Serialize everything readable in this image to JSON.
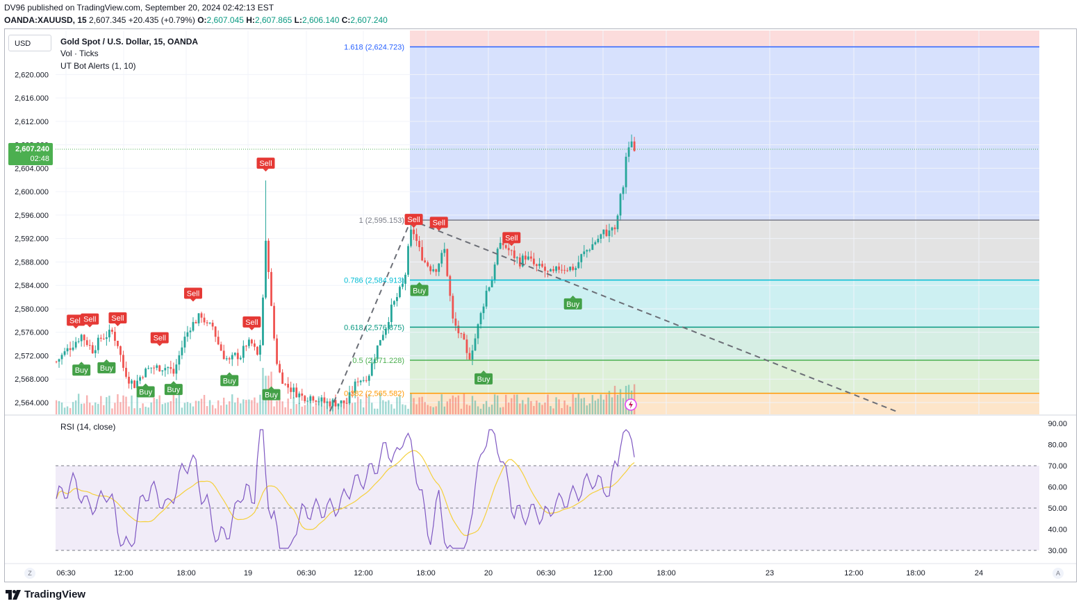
{
  "header": {
    "line1": "DV96 published on TradingView.com, September 20, 2024 02:42:13 EST",
    "symbol": "OANDA:XAUUSD, 15",
    "last": "2,607.345",
    "change": "+20.435 (+0.79%)",
    "o_label": "O:",
    "o_val": "2,607.045",
    "h_label": "H:",
    "h_val": "2,607.865",
    "l_label": "L:",
    "l_val": "2,606.140",
    "c_label": "C:",
    "c_val": "2,607.240"
  },
  "toolbar": {
    "currency_button": "USD"
  },
  "legend": {
    "title": "Gold Spot / U.S. Dollar, 15, OANDA",
    "vol": "Vol · Ticks",
    "indicator": "UT Bot Alerts (1, 10)",
    "rsi": "RSI (14, close)"
  },
  "price_tag": {
    "price": "2,607.240",
    "countdown": "02:48"
  },
  "footer": {
    "brand": "TradingView",
    "left_button": "Z",
    "right_button": "A"
  },
  "colors": {
    "up": "#26a69a",
    "down": "#ef5350",
    "buy": "#43a047",
    "sell": "#e53935",
    "rsi_line": "#7e57c2",
    "rsi_ma": "#f5d03b"
  },
  "chart_data": {
    "type": "candlestick",
    "symbol": "OANDA:XAUUSD",
    "interval": "15",
    "price_axis": {
      "min": 2562.5,
      "max": 2627.5,
      "ticks": [
        "2,564.000",
        "2,568.000",
        "2,572.000",
        "2,576.000",
        "2,580.000",
        "2,584.000",
        "2,588.000",
        "2,592.000",
        "2,596.000",
        "2,600.000",
        "2,604.000",
        "2,608.000",
        "2,612.000",
        "2,616.000",
        "2,620.000"
      ],
      "tick_values": [
        2564,
        2568,
        2572,
        2576,
        2580,
        2584,
        2588,
        2592,
        2596,
        2600,
        2604,
        2608,
        2612,
        2616,
        2620
      ]
    },
    "time_axis": {
      "labels": [
        "06:30",
        "12:00",
        "18:00",
        "19",
        "06:30",
        "12:00",
        "18:00",
        "20",
        "06:30",
        "12:00",
        "18:00",
        "23",
        "12:00",
        "18:00",
        "24"
      ]
    },
    "fib_levels": [
      {
        "label": "1.618 (2,624.723)",
        "value": 2624.723,
        "color": "#2962ff"
      },
      {
        "label": "1 (2,595.153)",
        "value": 2595.153,
        "color": "#787b86"
      },
      {
        "label": "0.786 (2,584.913)",
        "value": 2584.913,
        "color": "#00bcd4"
      },
      {
        "label": "0.618 (2,576.875)",
        "value": 2576.875,
        "color": "#089981"
      },
      {
        "label": "0.5 (2,571.228)",
        "value": 2571.228,
        "color": "#4caf50"
      },
      {
        "label": "0.382 (2,565.582)",
        "value": 2565.582,
        "color": "#ff9800"
      }
    ],
    "signals": [
      {
        "type": "Sell",
        "label": "Sell",
        "index": 7,
        "price": 2576.4
      },
      {
        "type": "Sell",
        "label": "Sell",
        "index": 12,
        "price": 2576.6
      },
      {
        "type": "Sell",
        "label": "Sell",
        "index": 22,
        "price": 2576.8
      },
      {
        "type": "Buy",
        "label": "Buy",
        "index": 9,
        "price": 2571.2
      },
      {
        "type": "Buy",
        "label": "Buy",
        "index": 18,
        "price": 2571.6
      },
      {
        "type": "Sell",
        "label": "Sell",
        "index": 37,
        "price": 2573.4
      },
      {
        "type": "Buy",
        "label": "Buy",
        "index": 32,
        "price": 2567.5
      },
      {
        "type": "Buy",
        "label": "Buy",
        "index": 42,
        "price": 2567.9
      },
      {
        "type": "Sell",
        "label": "Sell",
        "index": 49,
        "price": 2581.0
      },
      {
        "type": "Buy",
        "label": "Buy",
        "index": 62,
        "price": 2569.4
      },
      {
        "type": "Sell",
        "label": "Sell",
        "index": 70,
        "price": 2576.1
      },
      {
        "type": "Sell",
        "label": "Sell",
        "index": 75,
        "price": 2603.2
      },
      {
        "type": "Buy",
        "label": "Buy",
        "index": 77,
        "price": 2567.0
      },
      {
        "type": "Sell",
        "label": "Sell",
        "index": 128,
        "price": 2593.6
      },
      {
        "type": "Buy",
        "label": "Buy",
        "index": 130,
        "price": 2584.8
      },
      {
        "type": "Sell",
        "label": "Sell",
        "index": 137,
        "price": 2593.1
      },
      {
        "type": "Buy",
        "label": "Buy",
        "index": 153,
        "price": 2569.7
      },
      {
        "type": "Sell",
        "label": "Sell",
        "index": 163,
        "price": 2590.5
      },
      {
        "type": "Buy",
        "label": "Buy",
        "index": 185,
        "price": 2582.5
      }
    ],
    "rsi": {
      "period": 14,
      "axis_ticks": [
        "90.00",
        "80.00",
        "70.00",
        "60.00",
        "50.00",
        "40.00",
        "30.00"
      ],
      "tick_values": [
        90,
        80,
        70,
        60,
        50,
        40,
        30
      ],
      "levels": [
        70,
        50,
        30
      ],
      "ylim": [
        25,
        95
      ]
    }
  }
}
